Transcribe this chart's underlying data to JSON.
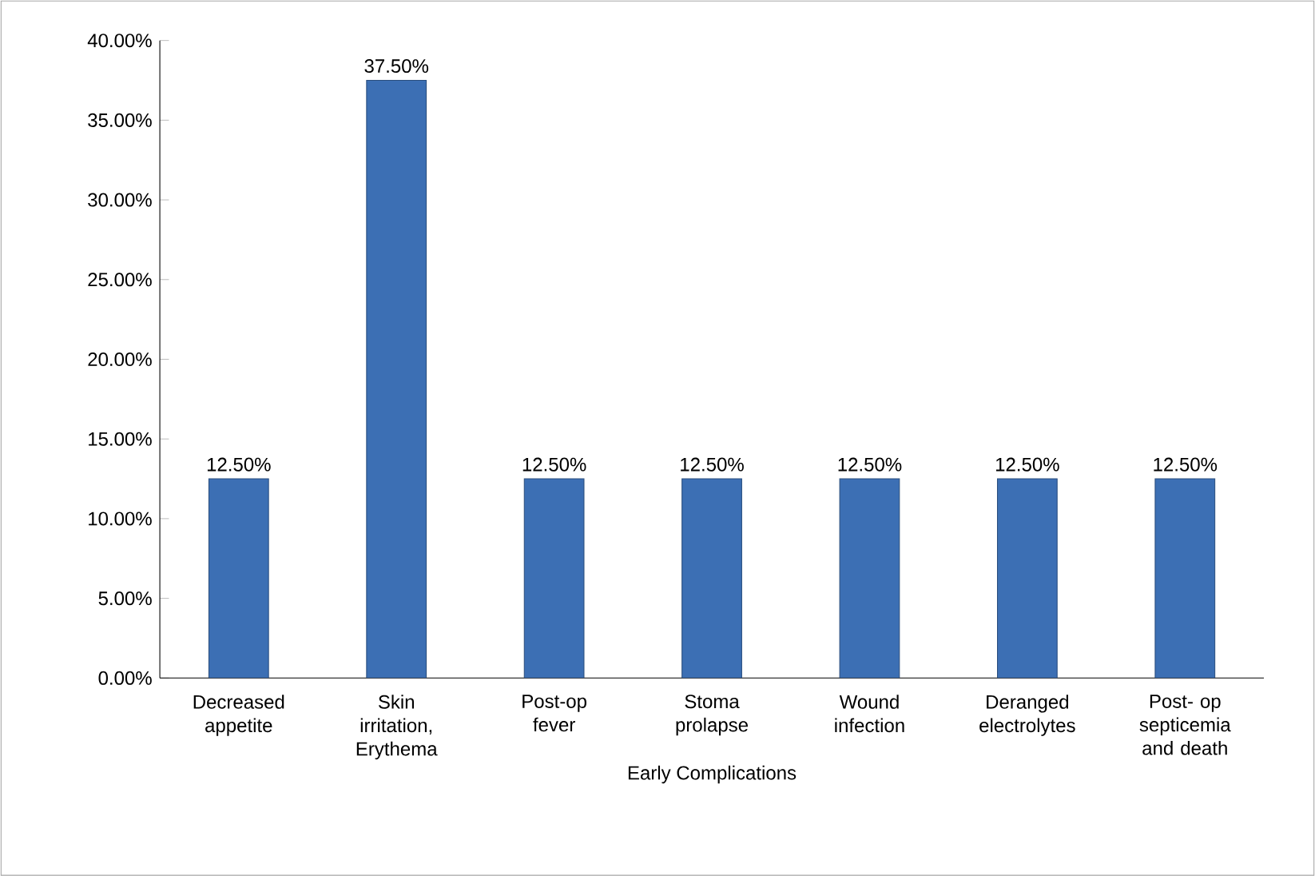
{
  "chart_data": {
    "type": "bar",
    "xlabel": "Early Complications",
    "categories": [
      "Decreased appetite",
      "Skin irritation, Erythema",
      "Post-op fever",
      "Stoma prolapse",
      "Wound infection",
      "Deranged electrolytes",
      "Post- op septicemia and death"
    ],
    "values": [
      12.5,
      37.5,
      12.5,
      12.5,
      12.5,
      12.5,
      12.5
    ],
    "value_labels": [
      "12.50%",
      "37.50%",
      "12.50%",
      "12.50%",
      "12.50%",
      "12.50%",
      "12.50%"
    ],
    "color": "#3c6fb4",
    "ylim": [
      0,
      40
    ],
    "yticks": [
      {
        "value": 0,
        "label": "0.00%"
      },
      {
        "value": 5,
        "label": "5.00%"
      },
      {
        "value": 10,
        "label": "10.00%"
      },
      {
        "value": 15,
        "label": "15.00%"
      },
      {
        "value": 20,
        "label": "20.00%"
      },
      {
        "value": 25,
        "label": "25.00%"
      },
      {
        "value": 30,
        "label": "30.00%"
      },
      {
        "value": 35,
        "label": "35.00%"
      },
      {
        "value": 40,
        "label": "40.00%"
      }
    ],
    "grid": false
  }
}
